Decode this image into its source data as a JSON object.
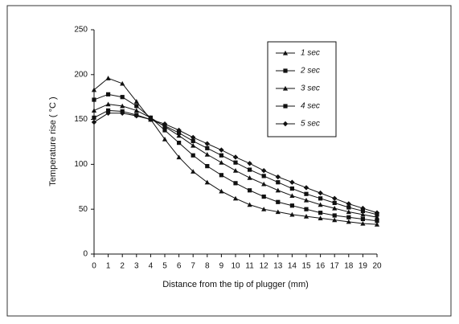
{
  "chart_data": {
    "type": "line",
    "xlabel": "Distance from the tip of plugger (mm)",
    "ylabel": "Temperature rise ( °C )",
    "x": [
      0,
      1,
      2,
      3,
      4,
      5,
      6,
      7,
      8,
      9,
      10,
      11,
      12,
      13,
      14,
      15,
      16,
      17,
      18,
      19,
      20
    ],
    "xlim": [
      0,
      20
    ],
    "xticks": [
      0,
      1,
      2,
      3,
      4,
      5,
      6,
      7,
      8,
      9,
      10,
      11,
      12,
      13,
      14,
      15,
      16,
      17,
      18,
      19,
      20
    ],
    "ylim": [
      0,
      250
    ],
    "yticks": [
      0,
      50,
      100,
      150,
      200,
      250
    ],
    "legend": "upper right",
    "series": [
      {
        "name": "1 sec",
        "color": "#111111",
        "marker": "triangle",
        "values": [
          183,
          196,
          190,
          170,
          150,
          128,
          108,
          92,
          80,
          70,
          62,
          55,
          50,
          47,
          44,
          42,
          40,
          38,
          36,
          34,
          33
        ]
      },
      {
        "name": "2 sec",
        "color": "#111111",
        "marker": "square",
        "values": [
          172,
          178,
          175,
          165,
          152,
          138,
          124,
          110,
          98,
          88,
          79,
          71,
          64,
          58,
          54,
          50,
          46,
          43,
          41,
          39,
          37
        ]
      },
      {
        "name": "3 sec",
        "color": "#111111",
        "marker": "triangle",
        "values": [
          160,
          167,
          165,
          160,
          152,
          142,
          132,
          121,
          111,
          102,
          93,
          85,
          78,
          71,
          65,
          60,
          55,
          51,
          47,
          44,
          41
        ]
      },
      {
        "name": "4 sec",
        "color": "#111111",
        "marker": "square",
        "values": [
          152,
          160,
          159,
          155,
          150,
          143,
          135,
          126,
          118,
          110,
          102,
          94,
          87,
          80,
          73,
          67,
          62,
          57,
          52,
          48,
          44
        ]
      },
      {
        "name": "5 sec",
        "color": "#111111",
        "marker": "diamond",
        "values": [
          147,
          157,
          157,
          154,
          150,
          145,
          138,
          130,
          123,
          116,
          108,
          101,
          93,
          86,
          80,
          74,
          68,
          62,
          56,
          51,
          46
        ]
      }
    ]
  }
}
